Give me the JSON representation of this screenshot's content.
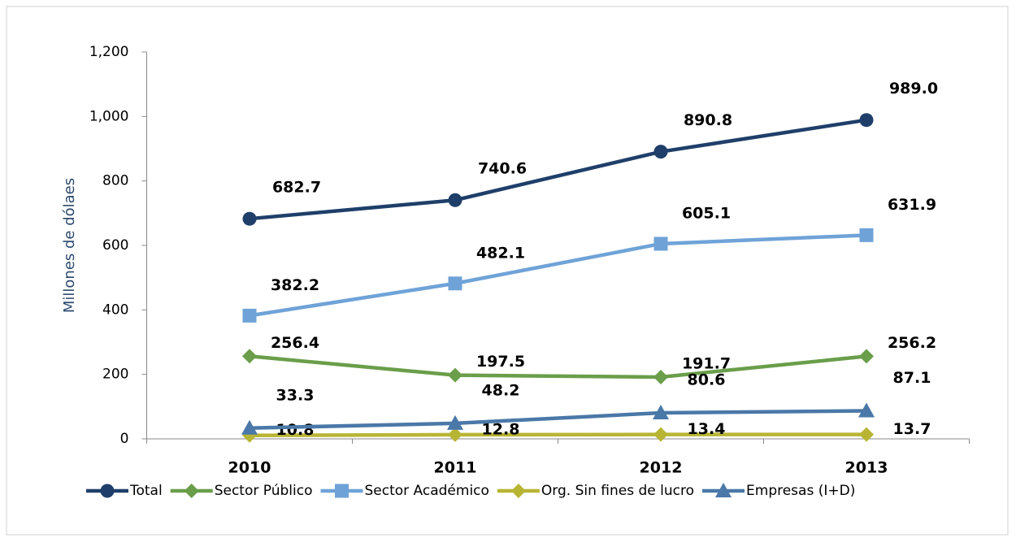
{
  "chart_data": {
    "type": "line",
    "y_label": "Millones de dólaes",
    "categories": [
      "2010",
      "2011",
      "2012",
      "2013"
    ],
    "ylim": [
      0,
      1200
    ],
    "yticks": [
      0,
      200,
      400,
      600,
      800,
      {
        "value": 1000,
        "label": "1,000"
      },
      {
        "value": 1200,
        "label": "1,200"
      }
    ],
    "legend": "bottom",
    "series": [
      {
        "name": "Total",
        "color": "#1f3f6a",
        "marker": "circle",
        "values": [
          682.7,
          740.6,
          890.8,
          989.0
        ],
        "value_labels": [
          "682.7",
          "740.6",
          "890.8",
          "989.0"
        ]
      },
      {
        "name": "Sector Público",
        "color": "#6a9e4a",
        "marker": "diamond",
        "values": [
          256.4,
          197.5,
          191.7,
          256.2
        ],
        "value_labels": [
          "256.4",
          "197.5",
          "191.7",
          "256.2"
        ]
      },
      {
        "name": "Sector Académico",
        "color": "#6fa3d8",
        "marker": "square",
        "values": [
          382.2,
          482.1,
          605.1,
          631.9
        ],
        "value_labels": [
          "382.2",
          "482.1",
          "605.1",
          "631.9"
        ]
      },
      {
        "name": "Org. Sin fines de lucro",
        "color": "#b8b535",
        "marker": "diamond",
        "values": [
          10.8,
          12.8,
          13.4,
          13.7
        ],
        "value_labels": [
          "10.8",
          "12.8",
          "13.4",
          "13.7"
        ]
      },
      {
        "name": "Empresas (I+D)",
        "color": "#4a78a8",
        "marker": "triangle",
        "values": [
          33.3,
          48.2,
          80.6,
          87.1
        ],
        "value_labels": [
          "33.3",
          "48.2",
          "80.6",
          "87.1"
        ]
      }
    ]
  }
}
